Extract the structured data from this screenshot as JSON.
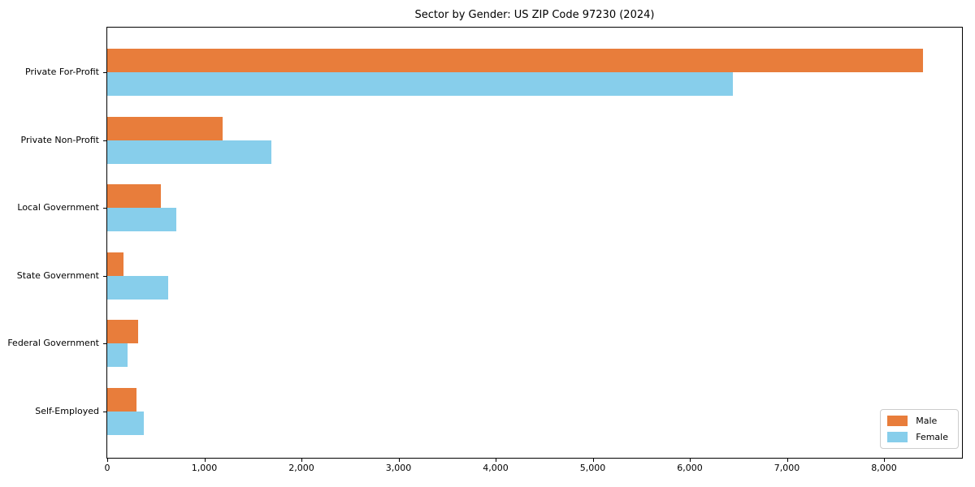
{
  "chart_data": {
    "type": "bar",
    "orientation": "horizontal",
    "title": "Sector by Gender: US ZIP Code 97230 (2024)",
    "categories": [
      "Private For-Profit",
      "Private Non-Profit",
      "Local Government",
      "State Government",
      "Federal Government",
      "Self-Employed"
    ],
    "series": [
      {
        "name": "Male",
        "color": "#e87d3b",
        "values": [
          8400,
          1190,
          550,
          170,
          320,
          300
        ]
      },
      {
        "name": "Female",
        "color": "#87ceeb",
        "values": [
          6440,
          1690,
          710,
          630,
          210,
          380
        ]
      }
    ],
    "xlabel": "",
    "ylabel": "",
    "xlim": [
      0,
      8820
    ],
    "x_ticks": [
      {
        "value": 0,
        "label": "0"
      },
      {
        "value": 1000,
        "label": "1,000"
      },
      {
        "value": 2000,
        "label": "2,000"
      },
      {
        "value": 3000,
        "label": "3,000"
      },
      {
        "value": 4000,
        "label": "4,000"
      },
      {
        "value": 5000,
        "label": "5,000"
      },
      {
        "value": 6000,
        "label": "6,000"
      },
      {
        "value": 7000,
        "label": "7,000"
      },
      {
        "value": 8000,
        "label": "8,000"
      }
    ],
    "grid": false,
    "legend_position": "lower right"
  },
  "colors": {
    "axis": "#000000",
    "background": "#ffffff",
    "legend_border": "#cccccc",
    "male": "#e87d3b",
    "female": "#87ceeb"
  }
}
